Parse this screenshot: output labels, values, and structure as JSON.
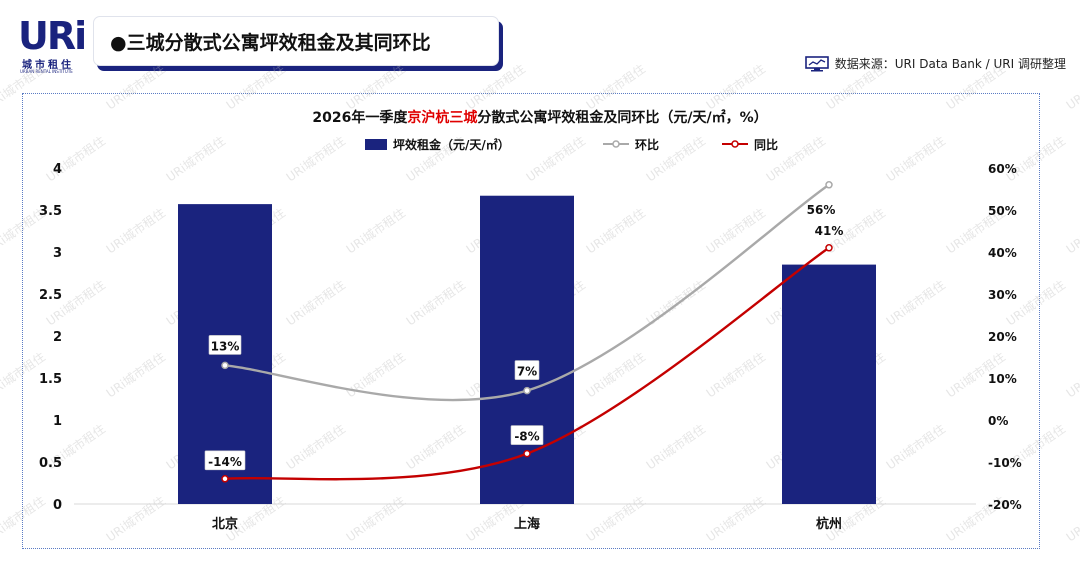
{
  "header": {
    "logo_text": "URi",
    "logo_cn": "城市租住",
    "logo_en": "URBAN RENTAL INSTITUTE",
    "title": "●三城分散式公寓坪效租金及其同环比",
    "source": "数据来源：URI Data Bank / URI 调研整理"
  },
  "watermark": "URi城市租住",
  "colors": {
    "bar": "#1a237e",
    "hb": "#a9a9a9",
    "tb": "#c40000",
    "title_highlight": "#e00000"
  },
  "chart_data": {
    "type": "bar",
    "title_parts": [
      {
        "text": "2026年一季度",
        "highlight": false
      },
      {
        "text": "京沪杭三城",
        "highlight": true
      },
      {
        "text": "分散式公寓坪效租金及同环比（元/天/㎡，%）",
        "highlight": false
      }
    ],
    "categories": [
      "北京",
      "上海",
      "杭州"
    ],
    "y_ticks": [
      "0",
      "0.5",
      "1",
      "1.5",
      "2",
      "2.5",
      "3",
      "3.5",
      "4"
    ],
    "y2_ticks": [
      "-20%",
      "-10%",
      "0%",
      "10%",
      "20%",
      "30%",
      "40%",
      "50%",
      "60%"
    ],
    "ylim": [
      0,
      4
    ],
    "y2lim": [
      -20,
      60
    ],
    "legend_position": "top-center",
    "grid": false,
    "series": [
      {
        "name": "坪效租金（元/天/㎡）",
        "type": "bar",
        "axis": "left",
        "values": [
          3.57,
          3.67,
          2.85
        ]
      },
      {
        "name": "环比",
        "type": "line",
        "axis": "right",
        "values": [
          13,
          7,
          56
        ],
        "labels": [
          "13%",
          "7%",
          "56%"
        ]
      },
      {
        "name": "同比",
        "type": "line",
        "axis": "right",
        "values": [
          -14,
          -8,
          41
        ],
        "labels": [
          "-14%",
          "-8%",
          "41%"
        ]
      }
    ]
  }
}
